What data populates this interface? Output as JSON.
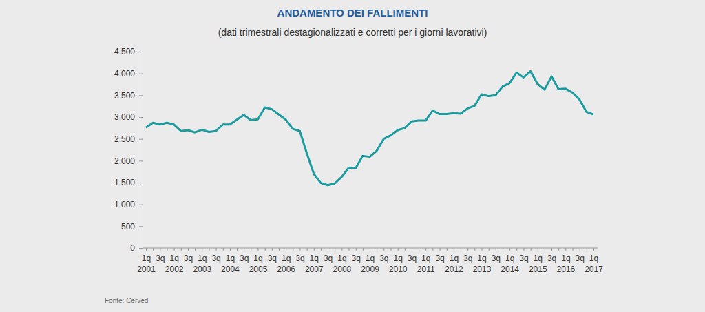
{
  "chart_data": {
    "type": "line",
    "title": "ANDAMENTO DEI FALLIMENTI",
    "subtitle": "(dati trimestrali destagionalizzati e corretti per i giorni lavorativi)",
    "source": "Fonte: Cerved",
    "categories": [
      "1q\n2001",
      null,
      "3q",
      null,
      "1q\n2002",
      null,
      "3q",
      null,
      "1q\n2003",
      null,
      "3q",
      null,
      "1q\n2004",
      null,
      "3q",
      null,
      "1q\n2005",
      null,
      "3q",
      null,
      "1q\n2006",
      null,
      "3q",
      null,
      "1q\n2007",
      null,
      "3q",
      null,
      "1q\n2008",
      null,
      "3q",
      null,
      "1q\n2009",
      null,
      "3q",
      null,
      "1q\n2010",
      null,
      "3q",
      null,
      "1q\n2011",
      null,
      "3q",
      null,
      "1q\n2012",
      null,
      "3q",
      null,
      "1q\n2013",
      null,
      "3q",
      null,
      "1q\n2014",
      null,
      "3q",
      null,
      "1q\n2015",
      null,
      "3q",
      null,
      "1q\n2016",
      null,
      "3q",
      null,
      "1q\n2017"
    ],
    "values": [
      2760,
      2870,
      2830,
      2870,
      2830,
      2680,
      2700,
      2650,
      2710,
      2660,
      2680,
      2830,
      2830,
      2940,
      3050,
      2930,
      2950,
      3220,
      3180,
      3060,
      2940,
      2730,
      2680,
      2170,
      1700,
      1490,
      1440,
      1480,
      1630,
      1840,
      1830,
      2110,
      2090,
      2230,
      2500,
      2580,
      2700,
      2750,
      2900,
      2920,
      2920,
      3150,
      3070,
      3070,
      3090,
      3080,
      3200,
      3260,
      3520,
      3480,
      3500,
      3700,
      3780,
      4020,
      3910,
      4050,
      3760,
      3630,
      3930,
      3640,
      3650,
      3560,
      3400,
      3120,
      3060
    ],
    "color": "#1a9ba0",
    "ylim": [
      0,
      4500
    ],
    "yticks": [
      0,
      500,
      {
        "value": 1000,
        "label": "1.000"
      },
      {
        "value": 1500,
        "label": "1.500"
      },
      {
        "value": 2000,
        "label": "2.000"
      },
      {
        "value": 2500,
        "label": "2.500"
      },
      {
        "value": 3000,
        "label": "3.000"
      },
      {
        "value": 3500,
        "label": "3.500"
      },
      {
        "value": 4000,
        "label": "4.000"
      },
      {
        "value": 4500,
        "label": "4.500"
      }
    ],
    "grid": false
  }
}
